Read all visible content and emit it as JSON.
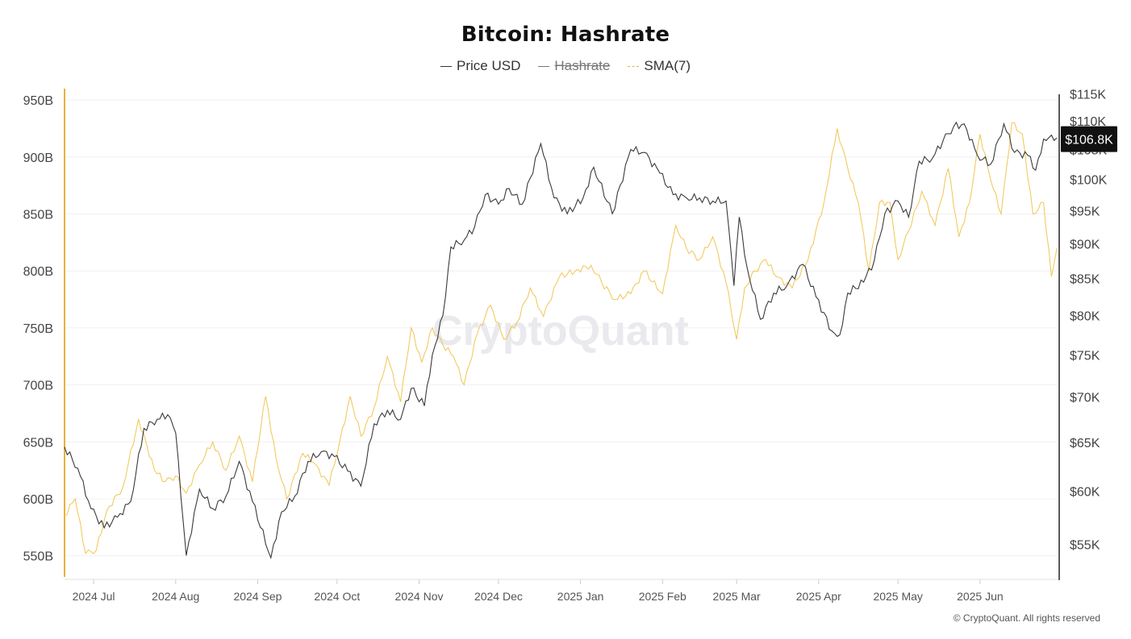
{
  "chart_data": {
    "type": "line",
    "title": "Bitcoin: Hashrate",
    "legend": [
      {
        "name": "Price USD",
        "color": "#333333",
        "hidden": false
      },
      {
        "name": "Hashrate",
        "color": "#777777",
        "hidden": true
      },
      {
        "name": "SMA(7)",
        "color": "#e8b23b",
        "hidden": false
      }
    ],
    "x_ticks": [
      "2024 Jul",
      "2024 Aug",
      "2024 Sep",
      "2024 Oct",
      "2024 Nov",
      "2024 Dec",
      "2025 Jan",
      "2025 Feb",
      "2025 Mar",
      "2025 Apr",
      "2025 May",
      "2025 Jun"
    ],
    "x_range": [
      "2024-06-20",
      "2025-06-30"
    ],
    "y_left": {
      "label": "",
      "range": [
        530,
        960
      ],
      "ticks": [
        "950B",
        "900B",
        "850B",
        "800B",
        "750B",
        "700B",
        "650B",
        "600B",
        "550B"
      ],
      "tick_values": [
        950,
        900,
        850,
        800,
        750,
        700,
        650,
        600,
        550
      ]
    },
    "y_right": {
      "label": "",
      "scale": "log",
      "range": [
        52000,
        116000
      ],
      "ticks": [
        "$115K",
        "$110K",
        "$105K",
        "$100K",
        "$95K",
        "$90K",
        "$85K",
        "$80K",
        "$75K",
        "$70K",
        "$65K",
        "$60K",
        "$55K"
      ],
      "tick_values": [
        115000,
        110000,
        105000,
        100000,
        95000,
        90000,
        85000,
        80000,
        75000,
        70000,
        65000,
        60000,
        55000
      ]
    },
    "current_price_label": "$106.8K",
    "current_price": 106800,
    "watermark": "CryptoQuant",
    "copyright": "© CryptoQuant. All rights reserved",
    "grid": true,
    "legend_position": "top-center",
    "series": [
      {
        "name": "Price USD",
        "axis": "right",
        "x": [
          "2024-06-20",
          "2024-06-25",
          "2024-06-30",
          "2024-07-05",
          "2024-07-10",
          "2024-07-15",
          "2024-07-20",
          "2024-07-25",
          "2024-07-29",
          "2024-08-01",
          "2024-08-05",
          "2024-08-10",
          "2024-08-15",
          "2024-08-20",
          "2024-08-25",
          "2024-08-30",
          "2024-09-06",
          "2024-09-10",
          "2024-09-15",
          "2024-09-20",
          "2024-09-25",
          "2024-09-30",
          "2024-10-05",
          "2024-10-10",
          "2024-10-15",
          "2024-10-20",
          "2024-10-25",
          "2024-10-29",
          "2024-11-03",
          "2024-11-06",
          "2024-11-10",
          "2024-11-13",
          "2024-11-18",
          "2024-11-22",
          "2024-11-26",
          "2024-12-01",
          "2024-12-05",
          "2024-12-10",
          "2024-12-17",
          "2024-12-22",
          "2024-12-27",
          "2025-01-02",
          "2025-01-06",
          "2025-01-13",
          "2025-01-20",
          "2025-01-25",
          "2025-01-31",
          "2025-02-05",
          "2025-02-10",
          "2025-02-15",
          "2025-02-20",
          "2025-02-25",
          "2025-02-28",
          "2025-03-02",
          "2025-03-05",
          "2025-03-10",
          "2025-03-15",
          "2025-03-20",
          "2025-03-26",
          "2025-03-31",
          "2025-04-06",
          "2025-04-09",
          "2025-04-12",
          "2025-04-18",
          "2025-04-22",
          "2025-04-26",
          "2025-05-01",
          "2025-05-05",
          "2025-05-09",
          "2025-05-14",
          "2025-05-18",
          "2025-05-22",
          "2025-05-26",
          "2025-05-31",
          "2025-06-05",
          "2025-06-10",
          "2025-06-14",
          "2025-06-19",
          "2025-06-22",
          "2025-06-25",
          "2025-06-28",
          "2025-06-30"
        ],
        "y": [
          64500,
          62300,
          58300,
          56500,
          57500,
          59000,
          66500,
          67500,
          68000,
          66000,
          54000,
          60200,
          58300,
          59500,
          63000,
          59000,
          53800,
          58000,
          59500,
          63000,
          64000,
          63500,
          62000,
          60500,
          67000,
          68500,
          67500,
          71000,
          69000,
          75000,
          80000,
          89500,
          90500,
          92500,
          97500,
          96000,
          98500,
          96000,
          106000,
          97000,
          94500,
          97000,
          102000,
          94500,
          105000,
          104500,
          101000,
          97500,
          97000,
          97000,
          96500,
          96500,
          84000,
          94000,
          86500,
          79500,
          83000,
          84000,
          87000,
          82500,
          78000,
          77500,
          83000,
          84500,
          87500,
          94500,
          96500,
          94000,
          103000,
          103500,
          106500,
          109000,
          109500,
          104000,
          102500,
          109500,
          104500,
          104000,
          101500,
          106800,
          107500,
          107000
        ]
      },
      {
        "name": "SMA(7)",
        "axis": "left",
        "x": [
          "2024-06-20",
          "2024-06-24",
          "2024-06-28",
          "2024-07-02",
          "2024-07-06",
          "2024-07-12",
          "2024-07-18",
          "2024-07-24",
          "2024-07-28",
          "2024-08-01",
          "2024-08-05",
          "2024-08-10",
          "2024-08-15",
          "2024-08-20",
          "2024-08-25",
          "2024-08-30",
          "2024-09-04",
          "2024-09-08",
          "2024-09-12",
          "2024-09-18",
          "2024-09-22",
          "2024-09-28",
          "2024-10-02",
          "2024-10-06",
          "2024-10-10",
          "2024-10-15",
          "2024-10-20",
          "2024-10-25",
          "2024-10-29",
          "2024-11-02",
          "2024-11-06",
          "2024-11-10",
          "2024-11-14",
          "2024-11-18",
          "2024-11-23",
          "2024-11-28",
          "2024-12-03",
          "2024-12-08",
          "2024-12-13",
          "2024-12-18",
          "2024-12-24",
          "2024-12-30",
          "2025-01-05",
          "2025-01-09",
          "2025-01-14",
          "2025-01-20",
          "2025-01-25",
          "2025-02-01",
          "2025-02-06",
          "2025-02-10",
          "2025-02-15",
          "2025-02-20",
          "2025-02-25",
          "2025-03-01",
          "2025-03-04",
          "2025-03-08",
          "2025-03-12",
          "2025-03-16",
          "2025-03-22",
          "2025-03-28",
          "2025-04-03",
          "2025-04-08",
          "2025-04-12",
          "2025-04-16",
          "2025-04-20",
          "2025-04-24",
          "2025-04-28",
          "2025-05-01",
          "2025-05-05",
          "2025-05-10",
          "2025-05-15",
          "2025-05-20",
          "2025-05-24",
          "2025-05-28",
          "2025-06-01",
          "2025-06-05",
          "2025-06-09",
          "2025-06-13",
          "2025-06-17",
          "2025-06-21",
          "2025-06-25",
          "2025-06-28",
          "2025-06-30"
        ],
        "y": [
          585,
          600,
          552,
          555,
          590,
          610,
          670,
          625,
          615,
          620,
          605,
          630,
          650,
          625,
          655,
          615,
          690,
          635,
          600,
          640,
          632,
          612,
          650,
          690,
          655,
          680,
          725,
          685,
          750,
          720,
          750,
          735,
          725,
          700,
          745,
          770,
          740,
          755,
          785,
          760,
          795,
          800,
          805,
          790,
          775,
          780,
          800,
          780,
          840,
          820,
          810,
          830,
          790,
          740,
          785,
          800,
          810,
          795,
          785,
          810,
          860,
          925,
          890,
          860,
          800,
          860,
          860,
          810,
          835,
          870,
          840,
          890,
          830,
          860,
          920,
          880,
          850,
          930,
          920,
          850,
          860,
          795,
          820
        ]
      }
    ]
  }
}
